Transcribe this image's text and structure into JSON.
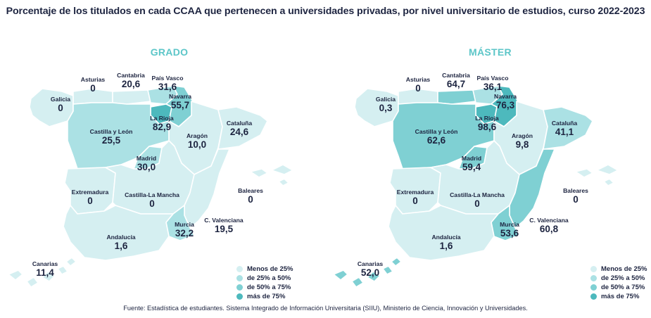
{
  "title": "Porcentaje de los titulados en cada CCAA que pertenecen a universidades privadas, por nivel universitario de estudios, curso 2022-2023",
  "colors": {
    "menos_25": "#d5eff1",
    "de_25_a_50": "#abe1e4",
    "de_50_a_75": "#7fd0d3",
    "mas_75": "#4db9bd",
    "title_accent": "#5cc6c8",
    "border": "#ffffff"
  },
  "legend": {
    "menos_25": "Menos de 25%",
    "de_25_a_50": "de 25% a 50%",
    "de_50_a_75": "de 50% a 75%",
    "mas_75": "más de 75%"
  },
  "maps": [
    {
      "title": "GRADO",
      "regions": [
        {
          "name": "Galicia",
          "value": "0",
          "class": "menos_25"
        },
        {
          "name": "Asturias",
          "value": "0",
          "class": "menos_25"
        },
        {
          "name": "Cantabria",
          "value": "20,6",
          "class": "menos_25"
        },
        {
          "name": "País Vasco",
          "value": "31,6",
          "class": "de_25_a_50"
        },
        {
          "name": "Navarra",
          "value": "55,7",
          "class": "de_50_a_75"
        },
        {
          "name": "La Rioja",
          "value": "82,9",
          "class": "mas_75"
        },
        {
          "name": "Castilla y León",
          "value": "25,5",
          "class": "de_25_a_50"
        },
        {
          "name": "Aragón",
          "value": "10,0",
          "class": "menos_25"
        },
        {
          "name": "Cataluña",
          "value": "24,6",
          "class": "menos_25"
        },
        {
          "name": "Madrid",
          "value": "30,0",
          "class": "de_25_a_50"
        },
        {
          "name": "Extremadura",
          "value": "0",
          "class": "menos_25"
        },
        {
          "name": "Castilla-La Mancha",
          "value": "0",
          "class": "menos_25"
        },
        {
          "name": "Baleares",
          "value": "0",
          "class": "menos_25"
        },
        {
          "name": "C. Valenciana",
          "value": "19,5",
          "class": "menos_25"
        },
        {
          "name": "Murcia",
          "value": "32,2",
          "class": "de_25_a_50"
        },
        {
          "name": "Andalucía",
          "value": "1,6",
          "class": "menos_25"
        },
        {
          "name": "Canarias",
          "value": "11,4",
          "class": "menos_25"
        }
      ]
    },
    {
      "title": "MÁSTER",
      "regions": [
        {
          "name": "Galicia",
          "value": "0,3",
          "class": "menos_25"
        },
        {
          "name": "Asturias",
          "value": "0",
          "class": "menos_25"
        },
        {
          "name": "Cantabria",
          "value": "64,7",
          "class": "de_50_a_75"
        },
        {
          "name": "País Vasco",
          "value": "36,1",
          "class": "de_25_a_50"
        },
        {
          "name": "Navarra",
          "value": "76,3",
          "class": "mas_75"
        },
        {
          "name": "La Rioja",
          "value": "98,6",
          "class": "mas_75"
        },
        {
          "name": "Castilla y León",
          "value": "62,6",
          "class": "de_50_a_75"
        },
        {
          "name": "Aragón",
          "value": "9,8",
          "class": "menos_25"
        },
        {
          "name": "Cataluña",
          "value": "41,1",
          "class": "de_25_a_50"
        },
        {
          "name": "Madrid",
          "value": "59,4",
          "class": "de_50_a_75"
        },
        {
          "name": "Extremadura",
          "value": "0",
          "class": "menos_25"
        },
        {
          "name": "Castilla-La Mancha",
          "value": "0",
          "class": "menos_25"
        },
        {
          "name": "Baleares",
          "value": "0",
          "class": "menos_25"
        },
        {
          "name": "C. Valenciana",
          "value": "60,8",
          "class": "de_50_a_75"
        },
        {
          "name": "Murcia",
          "value": "53,6",
          "class": "de_50_a_75"
        },
        {
          "name": "Andalucía",
          "value": "1,6",
          "class": "menos_25"
        },
        {
          "name": "Canarias",
          "value": "52,0",
          "class": "de_50_a_75"
        }
      ]
    }
  ],
  "source": "Fuente: Estadística de estudiantes. Sistema Integrado de Información Universitaria (SIIU), Ministerio de Ciencia, Innovación y Universidades."
}
